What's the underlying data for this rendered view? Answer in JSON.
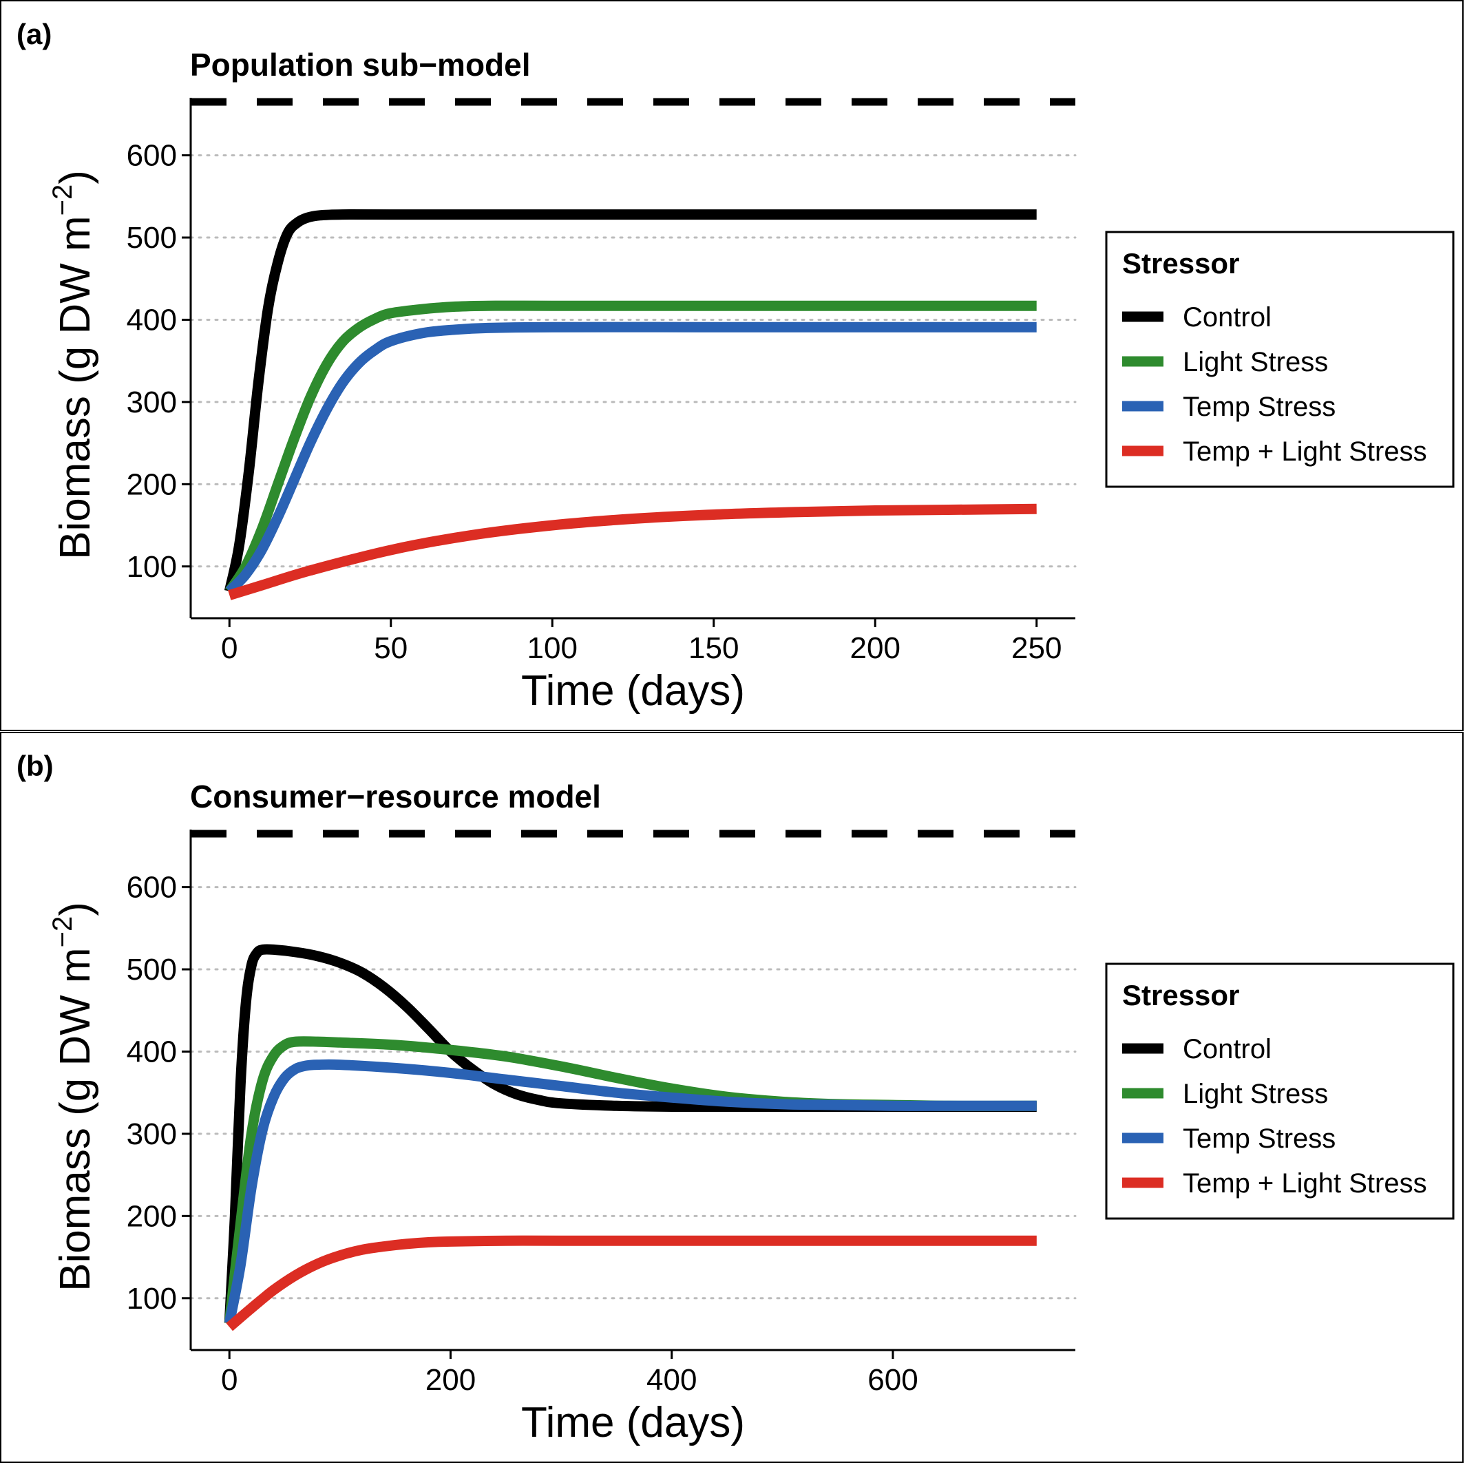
{
  "colors": {
    "Control": "#000000",
    "Light Stress": "#2e8b2e",
    "Temp Stress": "#2a62b4",
    "Temp + Light Stress": "#dc2d23",
    "gridline": "#bbbbbb"
  },
  "chart_data": [
    {
      "type": "line",
      "panel_label": "(a)",
      "title": "Population sub−model",
      "xlabel": "Time (days)",
      "ylabel": "Biomass (g DW m",
      "ylabel_sup": "−2",
      "ylabel_end": ")",
      "xlim": [
        -12,
        262
      ],
      "ylim": [
        37,
        670
      ],
      "xticks": [
        0,
        50,
        100,
        150,
        200,
        250
      ],
      "xtick_labels": [
        "0",
        "50",
        "100",
        "150",
        "200",
        "250"
      ],
      "yticks": [
        100,
        200,
        300,
        400,
        500,
        600
      ],
      "ytick_labels": [
        "100",
        "200",
        "300",
        "400",
        "500",
        "600"
      ],
      "grid": "horizontal dotted",
      "reference_line": {
        "y": 665,
        "style": "dashed"
      },
      "legend": {
        "title": "Stressor",
        "placement": "right",
        "entries": [
          "Control",
          "Light Stress",
          "Temp Stress",
          "Temp + Light Stress"
        ]
      },
      "series": [
        {
          "name": "Control",
          "x": [
            0,
            3,
            6,
            9,
            12,
            15,
            18,
            21,
            24,
            28,
            35,
            50,
            100,
            150,
            200,
            250
          ],
          "y": [
            70,
            125,
            215,
            325,
            415,
            470,
            505,
            518,
            524,
            527,
            528,
            528,
            528,
            528,
            528,
            528
          ]
        },
        {
          "name": "Light Stress",
          "x": [
            0,
            5,
            10,
            15,
            20,
            25,
            30,
            35,
            40,
            45,
            50,
            60,
            70,
            80,
            100,
            150,
            200,
            250
          ],
          "y": [
            70,
            100,
            145,
            200,
            255,
            305,
            345,
            373,
            390,
            401,
            408,
            413,
            416,
            417,
            417,
            417,
            417,
            417
          ]
        },
        {
          "name": "Temp Stress",
          "x": [
            0,
            5,
            10,
            15,
            20,
            25,
            30,
            35,
            40,
            45,
            50,
            60,
            70,
            80,
            100,
            150,
            200,
            250
          ],
          "y": [
            70,
            90,
            120,
            160,
            205,
            250,
            290,
            323,
            347,
            363,
            374,
            384,
            388,
            390,
            391,
            391,
            391,
            391
          ]
        },
        {
          "name": "Temp + Light Stress",
          "x": [
            0,
            10,
            25,
            50,
            75,
            100,
            125,
            150,
            175,
            200,
            225,
            250
          ],
          "y": [
            65,
            77,
            95,
            120,
            138,
            150,
            158,
            163,
            166,
            168,
            169,
            170
          ]
        }
      ]
    },
    {
      "type": "line",
      "panel_label": "(b)",
      "title": "Consumer−resource model",
      "xlabel": "Time (days)",
      "ylabel": "Biomass (g DW m",
      "ylabel_sup": "−2",
      "ylabel_end": ")",
      "xlim": [
        -35,
        765
      ],
      "ylim": [
        37,
        670
      ],
      "xticks": [
        0,
        200,
        400,
        600
      ],
      "xtick_labels": [
        "0",
        "200",
        "400",
        "600"
      ],
      "yticks": [
        100,
        200,
        300,
        400,
        500,
        600
      ],
      "ytick_labels": [
        "100",
        "200",
        "300",
        "400",
        "500",
        "600"
      ],
      "grid": "horizontal dotted",
      "reference_line": {
        "y": 665,
        "style": "dashed"
      },
      "legend": {
        "title": "Stressor",
        "placement": "right",
        "entries": [
          "Control",
          "Light Stress",
          "Temp Stress",
          "Temp + Light Stress"
        ]
      },
      "series": [
        {
          "name": "Control",
          "x": [
            0,
            5,
            10,
            15,
            20,
            25,
            30,
            40,
            60,
            80,
            100,
            120,
            140,
            160,
            180,
            200,
            220,
            240,
            260,
            280,
            300,
            350,
            400,
            500,
            600,
            730
          ],
          "y": [
            70,
            200,
            360,
            460,
            505,
            520,
            524,
            524,
            521,
            516,
            508,
            496,
            478,
            455,
            428,
            400,
            378,
            360,
            348,
            341,
            337,
            334,
            333,
            333,
            333,
            333
          ]
        },
        {
          "name": "Light Stress",
          "x": [
            0,
            10,
            20,
            30,
            40,
            50,
            60,
            80,
            100,
            150,
            200,
            250,
            300,
            350,
            400,
            450,
            500,
            550,
            600,
            650,
            730
          ],
          "y": [
            70,
            190,
            300,
            365,
            395,
            408,
            412,
            412,
            411,
            408,
            402,
            394,
            382,
            368,
            355,
            345,
            339,
            336,
            335,
            334,
            334
          ]
        },
        {
          "name": "Temp Stress",
          "x": [
            0,
            10,
            20,
            30,
            40,
            50,
            60,
            70,
            80,
            100,
            150,
            200,
            250,
            300,
            350,
            400,
            450,
            500,
            550,
            600,
            650,
            730
          ],
          "y": [
            70,
            140,
            235,
            305,
            345,
            368,
            379,
            383,
            384,
            384,
            380,
            374,
            366,
            358,
            350,
            344,
            339,
            336,
            335,
            334,
            334,
            334
          ]
        },
        {
          "name": "Temp + Light Stress",
          "x": [
            0,
            20,
            40,
            60,
            80,
            100,
            120,
            140,
            160,
            180,
            200,
            250,
            300,
            400,
            500,
            600,
            730
          ],
          "y": [
            65,
            88,
            110,
            128,
            142,
            152,
            159,
            163,
            166,
            168,
            169,
            170,
            170,
            170,
            170,
            170,
            170
          ]
        }
      ]
    }
  ]
}
